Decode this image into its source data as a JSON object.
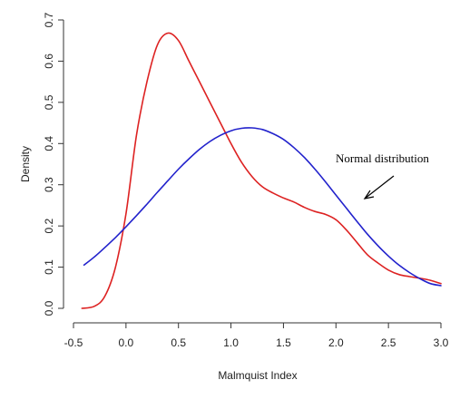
{
  "chart_data": {
    "type": "line",
    "xlabel": "Malmquist Index",
    "ylabel": "Density",
    "xlim": [
      -0.5,
      3.0
    ],
    "ylim": [
      0.0,
      0.7
    ],
    "x_ticks": [
      "-0.5",
      "0.0",
      "0.5",
      "1.0",
      "1.5",
      "2.0",
      "2.5",
      "3.0"
    ],
    "y_ticks": [
      "0.0",
      "0.1",
      "0.2",
      "0.3",
      "0.4",
      "0.5",
      "0.6",
      "0.7"
    ],
    "grid": false,
    "annotation": {
      "text": "Normal distribution",
      "arrow_points_to": "blue curve"
    },
    "series": [
      {
        "color": "#dd2222",
        "points": [
          [
            -0.42,
            0.0
          ],
          [
            -0.3,
            0.005
          ],
          [
            -0.2,
            0.03
          ],
          [
            -0.1,
            0.1
          ],
          [
            0.0,
            0.23
          ],
          [
            0.1,
            0.42
          ],
          [
            0.2,
            0.55
          ],
          [
            0.3,
            0.64
          ],
          [
            0.4,
            0.668
          ],
          [
            0.5,
            0.65
          ],
          [
            0.6,
            0.6
          ],
          [
            0.7,
            0.55
          ],
          [
            0.8,
            0.5
          ],
          [
            0.9,
            0.45
          ],
          [
            1.0,
            0.4
          ],
          [
            1.1,
            0.355
          ],
          [
            1.2,
            0.32
          ],
          [
            1.3,
            0.295
          ],
          [
            1.4,
            0.28
          ],
          [
            1.5,
            0.268
          ],
          [
            1.6,
            0.258
          ],
          [
            1.7,
            0.245
          ],
          [
            1.8,
            0.235
          ],
          [
            1.9,
            0.228
          ],
          [
            2.0,
            0.215
          ],
          [
            2.1,
            0.19
          ],
          [
            2.2,
            0.16
          ],
          [
            2.3,
            0.13
          ],
          [
            2.4,
            0.11
          ],
          [
            2.5,
            0.093
          ],
          [
            2.6,
            0.082
          ],
          [
            2.7,
            0.077
          ],
          [
            2.8,
            0.073
          ],
          [
            2.9,
            0.068
          ],
          [
            3.0,
            0.06
          ]
        ]
      },
      {
        "color": "#2222cc",
        "points": [
          [
            -0.4,
            0.105
          ],
          [
            -0.3,
            0.125
          ],
          [
            -0.2,
            0.148
          ],
          [
            -0.1,
            0.172
          ],
          [
            0.0,
            0.198
          ],
          [
            0.1,
            0.225
          ],
          [
            0.2,
            0.253
          ],
          [
            0.3,
            0.282
          ],
          [
            0.4,
            0.31
          ],
          [
            0.5,
            0.338
          ],
          [
            0.6,
            0.363
          ],
          [
            0.7,
            0.386
          ],
          [
            0.8,
            0.405
          ],
          [
            0.9,
            0.42
          ],
          [
            1.0,
            0.431
          ],
          [
            1.1,
            0.437
          ],
          [
            1.2,
            0.438
          ],
          [
            1.3,
            0.434
          ],
          [
            1.4,
            0.424
          ],
          [
            1.5,
            0.41
          ],
          [
            1.6,
            0.39
          ],
          [
            1.7,
            0.366
          ],
          [
            1.8,
            0.338
          ],
          [
            1.9,
            0.307
          ],
          [
            2.0,
            0.275
          ],
          [
            2.1,
            0.243
          ],
          [
            2.2,
            0.211
          ],
          [
            2.3,
            0.18
          ],
          [
            2.4,
            0.152
          ],
          [
            2.5,
            0.127
          ],
          [
            2.6,
            0.105
          ],
          [
            2.7,
            0.087
          ],
          [
            2.8,
            0.072
          ],
          [
            2.9,
            0.06
          ],
          [
            3.0,
            0.055
          ]
        ]
      }
    ]
  }
}
